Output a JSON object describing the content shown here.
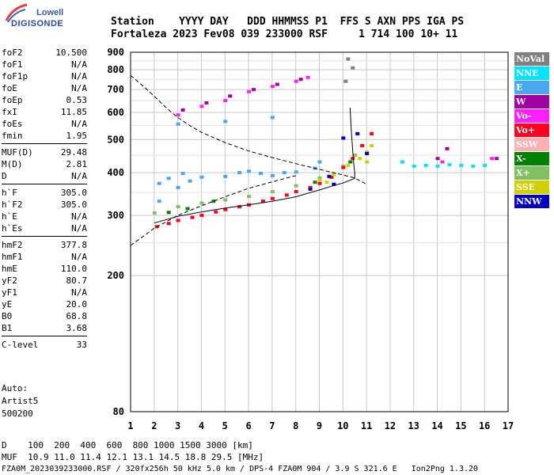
{
  "logo": {
    "line1": "Lowell",
    "line2": "DIGISONDE"
  },
  "header": {
    "row1": "Station    YYYY DAY   DDD HHMMSS P1  FFS S AXN PPS IGA PS",
    "row2": "Fortaleza 2023 Fev08 039 233000 RSF     1 714 100 10+ 11"
  },
  "params": [
    {
      "k": "foF2",
      "v": "10.500"
    },
    {
      "k": "foF1",
      "v": "N/A"
    },
    {
      "k": "foF1p",
      "v": "N/A"
    },
    {
      "k": "foE",
      "v": "N/A"
    },
    {
      "k": "foEp",
      "v": "0.53"
    },
    {
      "k": "fxI",
      "v": "11.85"
    },
    {
      "k": "foEs",
      "v": "N/A"
    },
    {
      "k": "fmin",
      "v": "1.95"
    },
    {
      "k": "MUF(D)",
      "v": "29.48"
    },
    {
      "k": "M(D)",
      "v": "2.81"
    },
    {
      "k": "D",
      "v": "N/A"
    },
    {
      "k": "h`F",
      "v": "305.0"
    },
    {
      "k": "h`F2",
      "v": "305.0"
    },
    {
      "k": "h`E",
      "v": "N/A"
    },
    {
      "k": "h`Es",
      "v": "N/A"
    },
    {
      "k": "hmF2",
      "v": "377.8"
    },
    {
      "k": "hmF1",
      "v": "N/A"
    },
    {
      "k": "hmE",
      "v": "110.0"
    },
    {
      "k": "yF2",
      "v": "80.7"
    },
    {
      "k": "yF1",
      "v": "N/A"
    },
    {
      "k": "yE",
      "v": "20.0"
    },
    {
      "k": "B0",
      "v": "68.8"
    },
    {
      "k": "B1",
      "v": "3.68"
    },
    {
      "k": "C-level",
      "v": "33"
    }
  ],
  "auto": {
    "l1": "Auto:",
    "l2": "Artist5",
    "l3": "500200"
  },
  "legend": [
    {
      "label": "NoVal",
      "color": "#808080"
    },
    {
      "label": "NNE",
      "color": "#00e5ff"
    },
    {
      "label": "E",
      "color": "#4aa8f0"
    },
    {
      "label": "W",
      "color": "#a000a0"
    },
    {
      "label": "Vo-",
      "color": "#ff20ff"
    },
    {
      "label": "Vo+",
      "color": "#ff0020"
    },
    {
      "label": "SSW",
      "color": "#ffb0b0"
    },
    {
      "label": "X-",
      "color": "#008000"
    },
    {
      "label": "X+",
      "color": "#80c060"
    },
    {
      "label": "SSE",
      "color": "#d0d000"
    },
    {
      "label": "NNW",
      "color": "#0000c0"
    }
  ],
  "footer": {
    "l1": "D    100  200  400  600  800 1000 1500 3000 [km]",
    "l2": "MUF  10.9 11.0 11.4 12.1 13.1 14.5 18.8 29.5 [MHz]",
    "l3": "FZA0M_2023039233000.RSF / 320fx256h 50 kHz 5.0 km / DPS-4 FZA0M 904 / 3.9 S 321.6 E   Ion2Png 1.3.20"
  },
  "chart_data": {
    "type": "scatter",
    "title": "",
    "xlabel": "",
    "ylabel": "",
    "xlim": [
      1,
      17
    ],
    "ylim": [
      80,
      900
    ],
    "x_ticks": [
      "1",
      "2",
      "3",
      "4",
      "5",
      "6",
      "7",
      "8",
      "9",
      "10",
      "11",
      "12",
      "13",
      "14",
      "15",
      "16",
      "17"
    ],
    "y_ticks": [
      "80",
      "200",
      "300",
      "400",
      "500",
      "600",
      "700",
      "800",
      "900"
    ],
    "y_scale": "log",
    "series": [
      {
        "name": "X+",
        "color": "#80c060",
        "points": [
          [
            2.0,
            305
          ],
          [
            3.0,
            318
          ],
          [
            4.0,
            326
          ],
          [
            5.0,
            333
          ],
          [
            6.0,
            341
          ],
          [
            7.0,
            352
          ],
          [
            8.0,
            366
          ],
          [
            9.0,
            386
          ],
          [
            10.0,
            418
          ],
          [
            10.5,
            450
          ]
        ]
      },
      {
        "name": "Vo+",
        "color": "#ff0020",
        "points": [
          [
            2.1,
            278
          ],
          [
            2.6,
            284
          ],
          [
            3.0,
            290
          ],
          [
            3.6,
            296
          ],
          [
            4.0,
            300
          ],
          [
            4.6,
            307
          ],
          [
            5.0,
            312
          ],
          [
            5.6,
            318
          ],
          [
            6.0,
            322
          ],
          [
            6.6,
            330
          ],
          [
            7.0,
            336
          ],
          [
            7.6,
            344
          ],
          [
            8.0,
            352
          ],
          [
            8.6,
            362
          ],
          [
            9.0,
            372
          ],
          [
            9.5,
            388
          ],
          [
            10.0,
            414
          ],
          [
            10.4,
            440
          ],
          [
            10.8,
            480
          ],
          [
            11.2,
            520
          ]
        ]
      },
      {
        "name": "E",
        "color": "#4aa8f0",
        "points": [
          [
            2.2,
            330
          ],
          [
            3.0,
            362
          ],
          [
            3.5,
            378
          ],
          [
            4.0,
            388
          ],
          [
            5.0,
            390
          ],
          [
            5.6,
            400
          ],
          [
            6.0,
            404
          ],
          [
            6.5,
            398
          ],
          [
            7.0,
            392
          ],
          [
            7.5,
            400
          ],
          [
            8.0,
            402
          ],
          [
            8.8,
            412
          ],
          [
            2.2,
            372
          ],
          [
            2.6,
            385
          ],
          [
            3.2,
            398
          ],
          [
            9.0,
            430
          ],
          [
            3.0,
            555
          ],
          [
            5.0,
            565
          ],
          [
            7.0,
            580
          ]
        ]
      },
      {
        "name": "NNE",
        "color": "#00e5ff",
        "points": [
          [
            13.0,
            418
          ],
          [
            13.5,
            420
          ],
          [
            14.0,
            418
          ],
          [
            14.5,
            422
          ],
          [
            15.0,
            420
          ],
          [
            15.5,
            418
          ],
          [
            16.0,
            420
          ],
          [
            12.5,
            430
          ]
        ]
      },
      {
        "name": "Vo-",
        "color": "#ff20ff",
        "points": [
          [
            3.0,
            590
          ],
          [
            4.0,
            625
          ],
          [
            5.0,
            650
          ],
          [
            6.0,
            690
          ],
          [
            7.0,
            715
          ],
          [
            8.0,
            740
          ],
          [
            8.5,
            760
          ],
          [
            14.2,
            430
          ],
          [
            16.3,
            440
          ]
        ]
      },
      {
        "name": "W",
        "color": "#a000a0",
        "points": [
          [
            3.2,
            610
          ],
          [
            4.2,
            640
          ],
          [
            5.2,
            670
          ],
          [
            6.2,
            700
          ],
          [
            7.2,
            725
          ],
          [
            8.2,
            750
          ],
          [
            14.0,
            440
          ],
          [
            14.4,
            470
          ],
          [
            16.5,
            440
          ]
        ]
      },
      {
        "name": "SSE",
        "color": "#d0d000",
        "points": [
          [
            9.0,
            380
          ],
          [
            9.6,
            395
          ],
          [
            10.2,
            420
          ],
          [
            10.7,
            440
          ],
          [
            11.0,
            460
          ],
          [
            11.2,
            480
          ],
          [
            11.0,
            430
          ],
          [
            9.3,
            375
          ]
        ]
      },
      {
        "name": "X-",
        "color": "#008000",
        "points": [
          [
            2.6,
            306
          ],
          [
            3.4,
            314
          ],
          [
            4.5,
            330
          ],
          [
            8.8,
            375
          ],
          [
            10.3,
            430
          ]
        ]
      },
      {
        "name": "NNW",
        "color": "#0000c0",
        "points": [
          [
            8.6,
            358
          ],
          [
            9.4,
            390
          ],
          [
            10.0,
            505
          ],
          [
            10.6,
            520
          ],
          [
            11.0,
            455
          ],
          [
            9.6,
            370
          ]
        ]
      },
      {
        "name": "NoVal",
        "color": "#808080",
        "points": [
          [
            10.2,
            860
          ],
          [
            10.4,
            810
          ],
          [
            10.1,
            740
          ]
        ]
      }
    ],
    "curves": {
      "mpd_curve": {
        "style": "dashed",
        "points": [
          [
            1.0,
            770
          ],
          [
            1.5,
            720
          ],
          [
            2.0,
            670
          ],
          [
            2.5,
            620
          ],
          [
            3.0,
            580
          ],
          [
            3.5,
            550
          ],
          [
            4.0,
            525
          ],
          [
            5.0,
            490
          ],
          [
            6.0,
            463
          ],
          [
            7.0,
            443
          ],
          [
            8.0,
            425
          ],
          [
            9.0,
            409
          ],
          [
            10.0,
            394
          ],
          [
            10.5,
            386
          ],
          [
            11.0,
            370
          ],
          [
            1.0,
            245
          ],
          [
            2.0,
            275
          ],
          [
            3.0,
            300
          ],
          [
            4.0,
            320
          ],
          [
            5.0,
            340
          ],
          [
            6.0,
            360
          ],
          [
            7.0,
            376
          ],
          [
            8.0,
            392
          ]
        ]
      },
      "true_height_profile": {
        "style": "solid",
        "points": [
          [
            2.0,
            285
          ],
          [
            3.0,
            298
          ],
          [
            4.0,
            307
          ],
          [
            5.0,
            315
          ],
          [
            6.0,
            322
          ],
          [
            7.0,
            330
          ],
          [
            8.0,
            340
          ],
          [
            8.5,
            348
          ],
          [
            9.0,
            356
          ],
          [
            9.5,
            365
          ],
          [
            10.0,
            373
          ],
          [
            10.3,
            380
          ],
          [
            10.5,
            385
          ],
          [
            10.5,
            400
          ],
          [
            10.45,
            430
          ],
          [
            10.4,
            480
          ],
          [
            10.35,
            540
          ],
          [
            10.3,
            620
          ]
        ]
      }
    },
    "grid": true
  }
}
